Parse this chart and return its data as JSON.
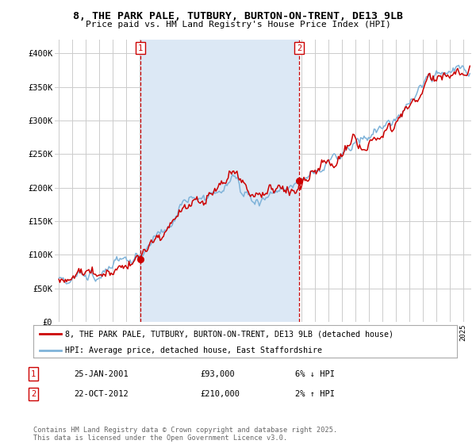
{
  "title": "8, THE PARK PALE, TUTBURY, BURTON-ON-TRENT, DE13 9LB",
  "subtitle": "Price paid vs. HM Land Registry's House Price Index (HPI)",
  "ylim": [
    0,
    420000
  ],
  "yticks": [
    0,
    50000,
    100000,
    150000,
    200000,
    250000,
    300000,
    350000,
    400000
  ],
  "ytick_labels": [
    "£0",
    "£50K",
    "£100K",
    "£150K",
    "£200K",
    "£250K",
    "£300K",
    "£350K",
    "£400K"
  ],
  "background_color": "#ffffff",
  "plot_bg_color": "#ffffff",
  "grid_color": "#cccccc",
  "shade_color": "#dce8f5",
  "red_color": "#cc0000",
  "blue_color": "#7fb3d9",
  "marker1_year": 2001.07,
  "marker1_label": "1",
  "marker1_value": 93000,
  "marker2_year": 2012.83,
  "marker2_label": "2",
  "marker2_value": 210000,
  "legend_red_label": "8, THE PARK PALE, TUTBURY, BURTON-ON-TRENT, DE13 9LB (detached house)",
  "legend_blue_label": "HPI: Average price, detached house, East Staffordshire",
  "annotation1_date": "25-JAN-2001",
  "annotation1_price": "£93,000",
  "annotation1_pct": "6% ↓ HPI",
  "annotation2_date": "22-OCT-2012",
  "annotation2_price": "£210,000",
  "annotation2_pct": "2% ↑ HPI",
  "footer": "Contains HM Land Registry data © Crown copyright and database right 2025.\nThis data is licensed under the Open Government Licence v3.0."
}
